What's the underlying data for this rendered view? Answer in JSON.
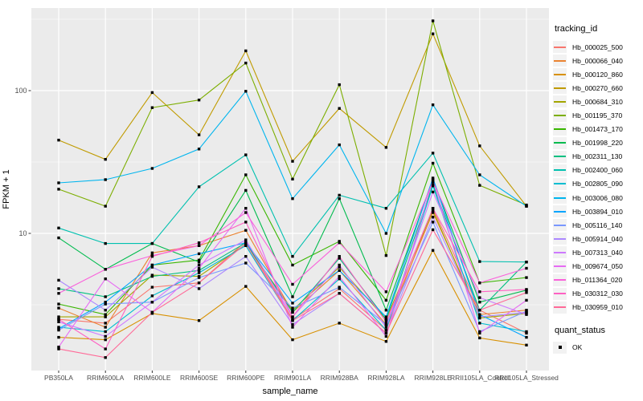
{
  "chart_data": {
    "type": "line",
    "title": "",
    "xlabel": "sample_name",
    "ylabel": "FPKM + 1",
    "y_scale": "log10",
    "y_ticks": [
      10,
      100
    ],
    "y_minor_ticks": [
      3.162,
      31.62,
      316.2
    ],
    "ylim": [
      1.3,
      380
    ],
    "legend_position": "right",
    "legend_title": "tracking_id",
    "quant_legend": {
      "title": "quant_status",
      "ok_label": "OK"
    },
    "panel_bg": "#EBEBEB",
    "grid_color": "#FFFFFF",
    "point_color": "#000000",
    "axis_text_color": "#4D4D4D",
    "categories": [
      "PB350LA",
      "RRIM600LA",
      "RRIM600LE",
      "RRIM600SE",
      "RRIM600PE",
      "RRIM901LA",
      "RRIM928BA",
      "RRIM928LA",
      "RRIM928LE",
      "RRII105LA_Control",
      "RRII105LA_Stressed"
    ],
    "series": [
      {
        "name": "Hb_000025_500",
        "color": "#F8766D",
        "values": [
          2.5,
          2.35,
          4.2,
          4.5,
          8.8,
          2.5,
          4.1,
          2.1,
          15,
          2.9,
          2.0
        ]
      },
      {
        "name": "Hb_000066_040",
        "color": "#EA8331",
        "values": [
          3.0,
          2.2,
          7.3,
          8.2,
          10.5,
          2.8,
          5.5,
          2.3,
          14,
          2.7,
          2.9
        ]
      },
      {
        "name": "Hb_000120_860",
        "color": "#D89000",
        "values": [
          1.87,
          1.8,
          2.75,
          2.45,
          4.25,
          1.8,
          2.35,
          1.75,
          7.6,
          1.85,
          1.65
        ]
      },
      {
        "name": "Hb_000270_660",
        "color": "#C09B00",
        "values": [
          45,
          33,
          97,
          49,
          190,
          32,
          75,
          40,
          250,
          41,
          15.5
        ]
      },
      {
        "name": "Hb_000684_310",
        "color": "#A3A500",
        "values": [
          2.6,
          2.6,
          5.1,
          5.0,
          8.4,
          2.9,
          5.8,
          2.5,
          14.5,
          2.55,
          2.75
        ]
      },
      {
        "name": "Hb_001195_370",
        "color": "#7CAE00",
        "values": [
          20.4,
          15.5,
          76,
          86,
          156,
          24,
          110,
          7,
          308,
          21.7,
          15.8
        ]
      },
      {
        "name": "Hb_001473_170",
        "color": "#39B600",
        "values": [
          3.2,
          2.7,
          6.0,
          6.5,
          25.7,
          6.0,
          8.8,
          3.4,
          31,
          4.5,
          4.9
        ]
      },
      {
        "name": "Hb_001998_220",
        "color": "#00BB4E",
        "values": [
          9.3,
          5.6,
          8.5,
          6.3,
          20,
          3.6,
          17.5,
          2.9,
          24,
          3.3,
          4.0
        ]
      },
      {
        "name": "Hb_002311_130",
        "color": "#00C081",
        "values": [
          4.1,
          3.6,
          5.0,
          5.5,
          8.6,
          2.8,
          6.7,
          2.5,
          22,
          2.9,
          6.3
        ]
      },
      {
        "name": "Hb_002400_060",
        "color": "#00C0AF",
        "values": [
          10.9,
          8.5,
          8.5,
          21.2,
          35.5,
          6.9,
          18.5,
          15,
          36.5,
          6.35,
          6.3
        ]
      },
      {
        "name": "Hb_002805_090",
        "color": "#00BDD1",
        "values": [
          2.2,
          2.05,
          3.65,
          5.3,
          8.2,
          2.45,
          4.8,
          2.1,
          21.5,
          2.35,
          2.05
        ]
      },
      {
        "name": "Hb_003006_080",
        "color": "#00B5EE",
        "values": [
          22.6,
          23.8,
          28.5,
          39,
          99,
          17.5,
          41.7,
          10,
          79.5,
          25.7,
          15.5
        ]
      },
      {
        "name": "Hb_003894_010",
        "color": "#00A5FF",
        "values": [
          2.15,
          3.3,
          6.0,
          7.2,
          8.6,
          3.25,
          5.5,
          2.6,
          24.4,
          2.7,
          1.87
        ]
      },
      {
        "name": "Hb_005116_140",
        "color": "#7997FF",
        "values": [
          2.1,
          3.2,
          3.3,
          4.9,
          6.2,
          3.0,
          4.2,
          2.3,
          12,
          2.05,
          2.85
        ]
      },
      {
        "name": "Hb_005914_040",
        "color": "#AC88FF",
        "values": [
          4.7,
          2.9,
          5.8,
          4.1,
          6.9,
          2.3,
          3.8,
          2.0,
          13,
          2.6,
          2.8
        ]
      },
      {
        "name": "Hb_007313_040",
        "color": "#CD79FF",
        "values": [
          2.4,
          1.9,
          3.3,
          6.0,
          9.0,
          2.6,
          6.0,
          2.2,
          19.5,
          3.55,
          2.7
        ]
      },
      {
        "name": "Hb_009674_050",
        "color": "#E76BF3",
        "values": [
          1.6,
          4.8,
          2.8,
          5.7,
          15,
          2.2,
          5.0,
          1.9,
          23.5,
          2.0,
          3.4
        ]
      },
      {
        "name": "Hb_011364_020",
        "color": "#FA62DB",
        "values": [
          3.8,
          5.6,
          7.0,
          8.2,
          14,
          4.4,
          8.6,
          3.9,
          23,
          4.5,
          5.7
        ]
      },
      {
        "name": "Hb_030312_030",
        "color": "#FF61C3",
        "values": [
          2.5,
          1.55,
          6.9,
          8.6,
          12,
          2.6,
          6.9,
          2.4,
          15,
          3.9,
          4.05
        ]
      },
      {
        "name": "Hb_030959_010",
        "color": "#FF6A98",
        "values": [
          1.55,
          1.35,
          2.8,
          4.5,
          8.5,
          2.45,
          3.8,
          2.0,
          10.6,
          2.9,
          3.85
        ]
      }
    ]
  }
}
